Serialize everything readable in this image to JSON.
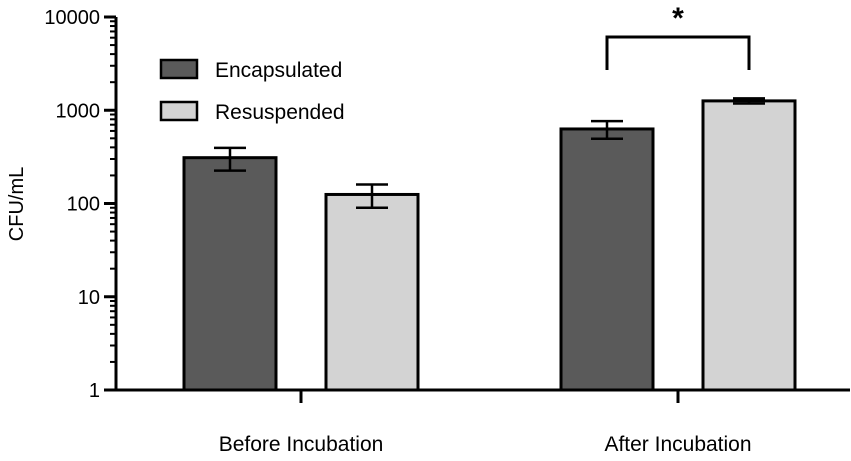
{
  "chart_data": {
    "type": "bar",
    "yscale": "log",
    "ylabel": "CFU/mL",
    "xlabel": "",
    "ylim": [
      1,
      10000
    ],
    "yticks": [
      1,
      10,
      100,
      1000,
      10000
    ],
    "ytick_labels": [
      "1",
      "10",
      "100",
      "1000",
      "10000"
    ],
    "categories": [
      "Before Incubation",
      "After Incubation"
    ],
    "series": [
      {
        "name": "Encapsulated",
        "color": "#5a5a5a",
        "values": [
          310,
          630
        ],
        "error": [
          85,
          135
        ]
      },
      {
        "name": "Resuspended",
        "color": "#d3d3d3",
        "values": [
          125,
          1260
        ],
        "error": [
          35,
          80
        ]
      }
    ],
    "legend_position": "top-left",
    "annotations": [
      {
        "label": "*",
        "category": "After Incubation",
        "between": [
          "Encapsulated",
          "Resuspended"
        ]
      }
    ]
  }
}
